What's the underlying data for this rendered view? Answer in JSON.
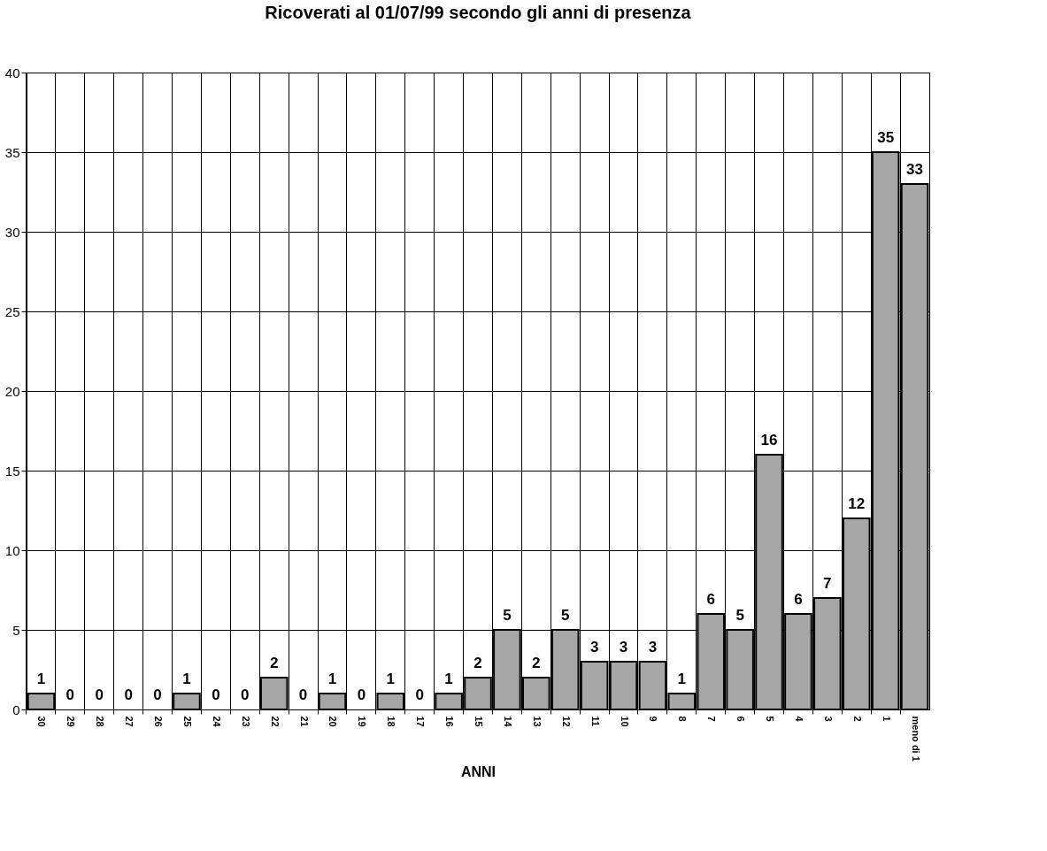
{
  "chart_data": {
    "type": "bar",
    "title": "Ricoverati al 01/07/99 secondo gli anni di presenza",
    "xlabel": "ANNI",
    "categories": [
      "30",
      "29",
      "28",
      "27",
      "26",
      "25",
      "24",
      "23",
      "22",
      "21",
      "20",
      "19",
      "18",
      "17",
      "16",
      "15",
      "14",
      "13",
      "12",
      "11",
      "10",
      "9",
      "8",
      "7",
      "6",
      "5",
      "4",
      "3",
      "2",
      "1",
      "meno di 1"
    ],
    "values": [
      1,
      0,
      0,
      0,
      0,
      1,
      0,
      0,
      2,
      0,
      1,
      0,
      1,
      0,
      1,
      2,
      5,
      2,
      5,
      3,
      3,
      3,
      1,
      6,
      5,
      16,
      6,
      7,
      12,
      35,
      33
    ],
    "color": "#a6a6a6",
    "ylim": [
      0,
      40
    ],
    "yticks": [
      0,
      5,
      10,
      15,
      20,
      25,
      30,
      35,
      40
    ],
    "grid": true,
    "data_labels": true
  }
}
